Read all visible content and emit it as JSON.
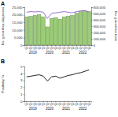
{
  "chart_data": [
    {
      "type": "bar",
      "title": "A",
      "categories": [
        "Q1",
        "Q2",
        "Q3",
        "Q4",
        "Q1",
        "Q2",
        "Q3",
        "Q4",
        "Q1",
        "Q2",
        "Q3",
        "Q4",
        "Q1",
        "Q2",
        "Q3",
        "Q4"
      ],
      "years": [
        "2019",
        "2020",
        "2021",
        "2022"
      ],
      "y_label": "No. gonorrhea diagnoses",
      "y2_label": "No. gonorrhea tests",
      "ylim": [
        0,
        25000
      ],
      "yticks": [
        0,
        {
          "value": 5000,
          "label": "5,000"
        },
        {
          "value": 10000,
          "label": "10,000"
        },
        {
          "value": 15000,
          "label": "15,000"
        },
        {
          "value": 20000,
          "label": "20,000"
        },
        {
          "value": 25000,
          "label": "25,000"
        }
      ],
      "y2lim": [
        0,
        600000
      ],
      "y2ticks": [
        0,
        {
          "value": 100000,
          "label": "100,000"
        },
        {
          "value": 200000,
          "label": "200,000"
        },
        {
          "value": 300000,
          "label": "300,000"
        },
        {
          "value": 400000,
          "label": "400,000"
        },
        {
          "value": 500000,
          "label": "500,000"
        },
        {
          "value": 600000,
          "label": "600,000"
        }
      ],
      "series": [
        {
          "type": "bar",
          "color": "#9ccc78",
          "values": [
            18500,
            19000,
            19500,
            20000,
            18500,
            12000,
            17500,
            18000,
            17000,
            18500,
            19000,
            19500,
            21000,
            22000,
            22500,
            22000
          ]
        },
        {
          "type": "line",
          "axis": "y2",
          "color": "#9170c8",
          "values": [
            520000,
            530000,
            525000,
            530000,
            520000,
            420000,
            500000,
            510000,
            520000,
            530000,
            520000,
            510000,
            530000,
            540000,
            545000,
            520000
          ]
        }
      ]
    },
    {
      "type": "line",
      "title": "B",
      "categories": [
        "Q1",
        "Q2",
        "Q3",
        "Q4",
        "Q1",
        "Q2",
        "Q3",
        "Q4",
        "Q1",
        "Q2",
        "Q3",
        "Q4",
        "Q1",
        "Q2",
        "Q3",
        "Q4"
      ],
      "years": [
        "2019",
        "2020",
        "2021",
        "2022"
      ],
      "y_label": "Positivity, %",
      "ylim": [
        0,
        5
      ],
      "yticks": [
        0,
        1,
        2,
        3,
        4,
        5
      ],
      "series": [
        {
          "type": "line",
          "color": "#222222",
          "values": [
            3.5,
            3.6,
            3.7,
            3.8,
            3.6,
            2.9,
            3.5,
            3.6,
            3.3,
            3.5,
            3.7,
            3.8,
            4.0,
            4.1,
            4.3,
            4.5
          ]
        }
      ]
    }
  ]
}
